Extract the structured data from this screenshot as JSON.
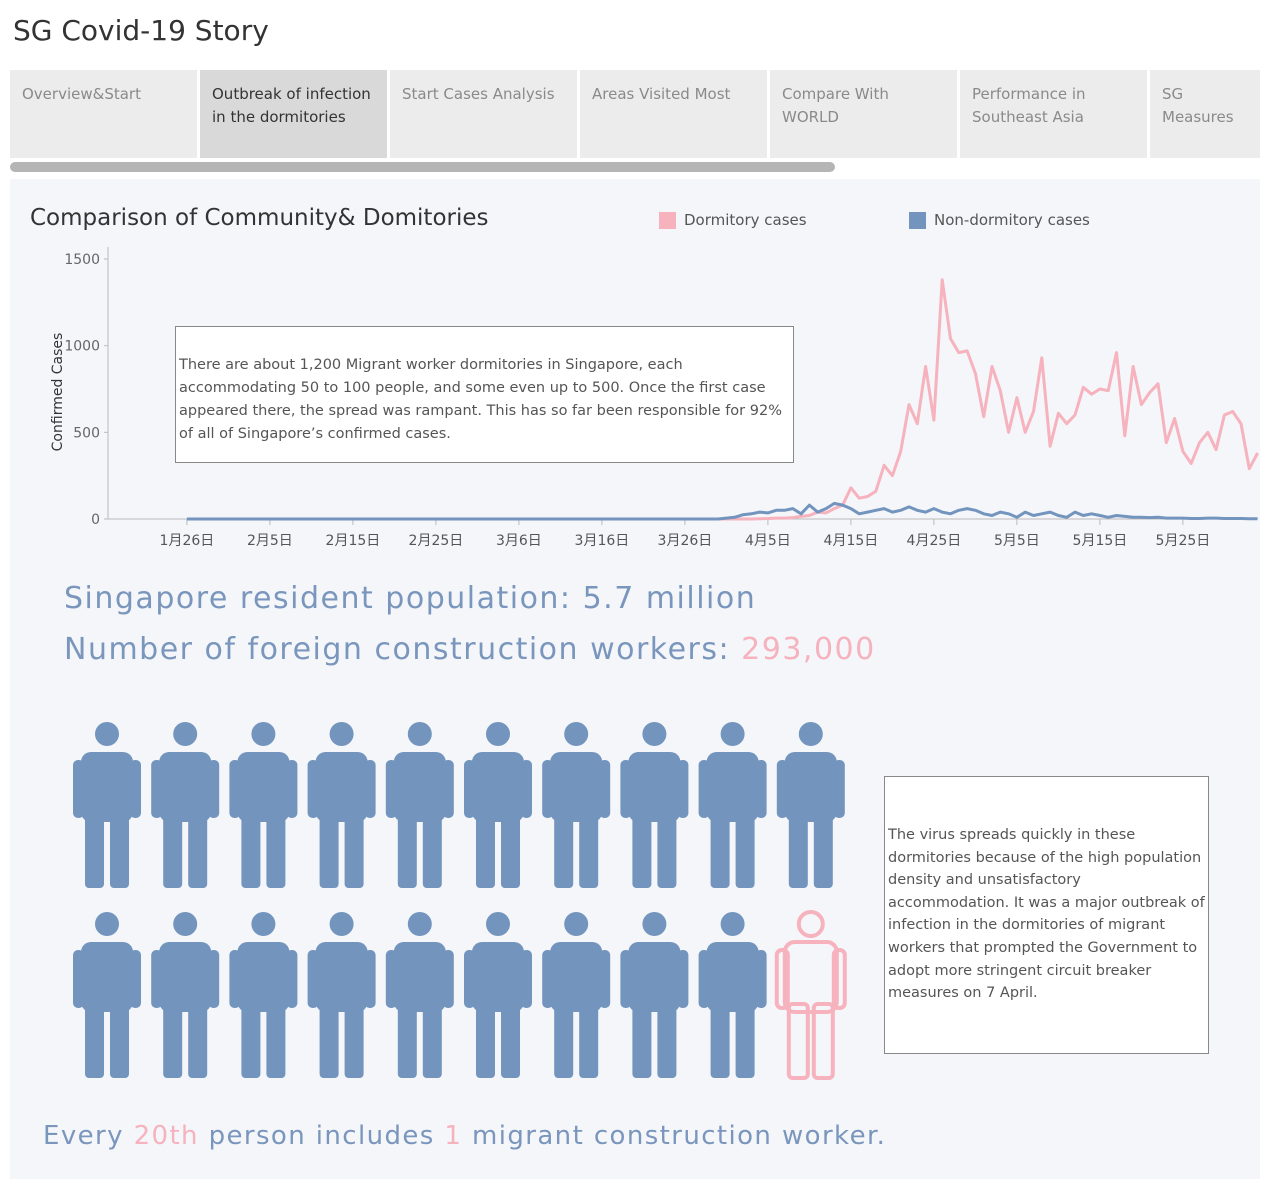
{
  "story": {
    "title": "SG Covid-19 Story",
    "tabs": [
      {
        "label": "Overview&Start",
        "active": false
      },
      {
        "label": "Outbreak of infection in the dormitories",
        "active": true
      },
      {
        "label": "Start Cases Analysis",
        "active": false
      },
      {
        "label": "Areas Visited Most",
        "active": false
      },
      {
        "label": "Compare With  WORLD",
        "active": false
      },
      {
        "label": "Performance in Southeast Asia",
        "active": false
      },
      {
        "label": "SG Measures",
        "active": false
      }
    ]
  },
  "colors": {
    "dormitory": "#f6b2bd",
    "non_dormitory": "#7294bd",
    "text_blue": "#7a96bd"
  },
  "chart_data": {
    "type": "line",
    "title": "Comparison of Community& Domitories",
    "ylabel": "Confirmed Cases",
    "xlabel": "",
    "ylim": [
      0,
      1500
    ],
    "yticks": [
      0,
      500,
      1000,
      1500
    ],
    "xticks": [
      "1月26日",
      "2月5日",
      "2月15日",
      "2月25日",
      "3月6日",
      "3月16日",
      "3月26日",
      "4月5日",
      "4月15日",
      "4月25日",
      "5月5日",
      "5月15日",
      "5月25日"
    ],
    "grid": false,
    "legend": "top",
    "start_date": "1月23日",
    "series": [
      {
        "name": "Dormitory cases",
        "color": "#f6b2bd",
        "values": [
          0,
          0,
          0,
          0,
          0,
          0,
          0,
          0,
          0,
          0,
          0,
          0,
          0,
          0,
          0,
          0,
          0,
          0,
          0,
          0,
          0,
          0,
          0,
          0,
          0,
          0,
          0,
          0,
          0,
          0,
          0,
          0,
          0,
          0,
          0,
          0,
          0,
          0,
          0,
          0,
          0,
          0,
          0,
          0,
          0,
          0,
          0,
          0,
          0,
          0,
          0,
          0,
          0,
          0,
          0,
          0,
          0,
          0,
          0,
          0,
          0,
          0,
          0,
          0,
          0,
          0,
          0,
          0,
          0,
          2,
          3,
          5,
          5,
          8,
          15,
          20,
          40,
          35,
          60,
          80,
          180,
          120,
          130,
          160,
          310,
          250,
          390,
          660,
          550,
          880,
          570,
          1380,
          1040,
          960,
          970,
          840,
          590,
          880,
          740,
          500,
          700,
          500,
          620,
          930,
          420,
          610,
          550,
          600,
          760,
          720,
          750,
          740,
          960,
          480,
          880,
          660,
          730,
          780,
          440,
          580,
          390,
          320,
          440,
          500,
          400,
          600,
          620,
          550,
          290,
          380
        ]
      },
      {
        "name": "Non-dormitory cases",
        "color": "#7294bd",
        "values": [
          0,
          0,
          0,
          0,
          0,
          0,
          0,
          0,
          0,
          0,
          0,
          0,
          0,
          0,
          0,
          0,
          0,
          0,
          0,
          0,
          0,
          0,
          0,
          0,
          0,
          0,
          0,
          0,
          0,
          0,
          0,
          0,
          0,
          0,
          0,
          0,
          0,
          0,
          0,
          0,
          0,
          0,
          0,
          0,
          0,
          0,
          0,
          0,
          0,
          0,
          0,
          0,
          0,
          0,
          0,
          0,
          0,
          0,
          0,
          0,
          0,
          0,
          0,
          0,
          0,
          5,
          10,
          25,
          30,
          40,
          35,
          50,
          50,
          60,
          30,
          80,
          40,
          60,
          90,
          80,
          60,
          30,
          40,
          50,
          60,
          40,
          50,
          70,
          50,
          40,
          60,
          40,
          30,
          50,
          60,
          50,
          30,
          20,
          40,
          30,
          10,
          40,
          20,
          30,
          40,
          20,
          10,
          40,
          20,
          30,
          20,
          10,
          20,
          15,
          10,
          10,
          8,
          10,
          5,
          5,
          5,
          3,
          3,
          5,
          5,
          3,
          3,
          3,
          2,
          2
        ]
      }
    ]
  },
  "note1": "There are about 1,200 Migrant worker dormitories in Singapore, each accommodating 50 to 100 people, and some even up to 500. Once the first case appeared there, the spread was rampant. This has so far been responsible for 92% of all of Singapore’s confirmed cases.",
  "stats": {
    "population_label": "Singapore resident population: 5.7 million",
    "workers_label": "Number of foreign construction workers: ",
    "workers_value": "293,000"
  },
  "pictogram": {
    "total": 20,
    "highlighted": 1,
    "per_row": 10
  },
  "note2": "The virus spreads quickly in these dormitories because of the high population density and unsatisfactory accommodation. It was a major outbreak of infection in the dormitories of migrant workers that prompted the Government to adopt more stringent circuit breaker measures on 7 April.",
  "footer": {
    "part1": "Every ",
    "highlight1": "20th",
    "part2": " person includes ",
    "highlight2": "1",
    "part3": " migrant construction worker."
  }
}
